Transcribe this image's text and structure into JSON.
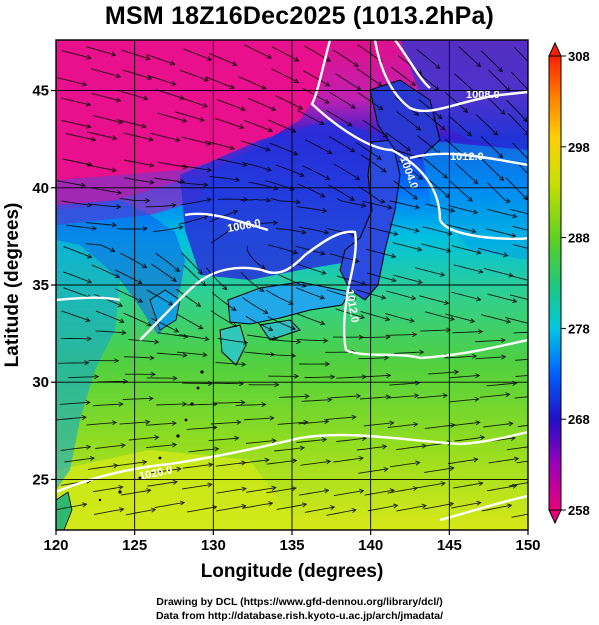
{
  "title": "MSM 18Z16Dec2025 (1013.2hPa)",
  "map": {
    "xlabel": "Longitude (degrees)",
    "ylabel": "Latitude  (degrees)",
    "lon_range": [
      120,
      150
    ],
    "lat_range": [
      22.4,
      47.6
    ],
    "lon_ticks": [
      "120",
      "125",
      "130",
      "135",
      "140",
      "145",
      "150"
    ],
    "lat_ticks": [
      "25",
      "30",
      "35",
      "40",
      "45"
    ],
    "grid": true,
    "isobars": [
      {
        "label": "1000.0"
      },
      {
        "label": "1004.0"
      },
      {
        "label": "1008.0"
      },
      {
        "label": "1012.0"
      },
      {
        "label": "1012.0"
      },
      {
        "label": "1020.0"
      }
    ]
  },
  "colorbar": {
    "ticks": [
      "308",
      "298",
      "288",
      "278",
      "268",
      "258"
    ],
    "min": 258,
    "max": 308,
    "colors": [
      "#e8007a",
      "#9c00b8",
      "#2010c8",
      "#0060ff",
      "#00c8e0",
      "#20c878",
      "#60d020",
      "#c8e000",
      "#ffd000",
      "#ff8000",
      "#ff2000"
    ]
  },
  "footer": {
    "line1": "Drawing by DCL (https://www.gfd-dennou.org/library/dcl/)",
    "line2": "Data from http://database.rish.kyoto-u.ac.jp/arch/jmadata/"
  }
}
